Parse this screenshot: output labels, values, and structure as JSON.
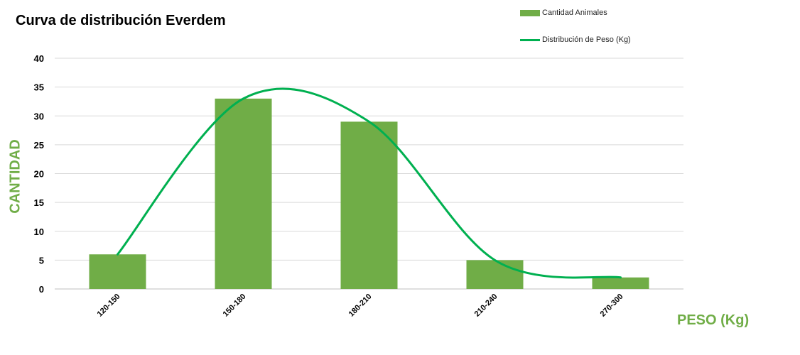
{
  "chart_data": {
    "type": "bar",
    "title": "Curva de distribución Everdem",
    "xlabel": "PESO (Kg)",
    "ylabel": "CANTIDAD",
    "categories": [
      "120-150",
      "150-180",
      "180-210",
      "210-240",
      "270-300"
    ],
    "series": [
      {
        "name": "Cantidad Animales",
        "type": "bar",
        "color": "#70ad47",
        "values": [
          6,
          33,
          29,
          5,
          2
        ]
      },
      {
        "name": "Distribución de Peso (Kg)",
        "type": "line",
        "smooth": true,
        "color": "#00b050",
        "values": [
          6,
          33,
          29,
          5,
          2
        ]
      }
    ],
    "yticks": [
      "0",
      "5",
      "10",
      "15",
      "20",
      "25",
      "30",
      "35",
      "40"
    ],
    "ylim": [
      0,
      40
    ],
    "grid": true,
    "legend": "top-right"
  }
}
